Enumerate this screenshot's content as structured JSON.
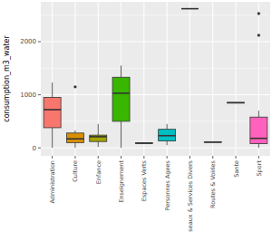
{
  "chart_data": {
    "type": "boxplot",
    "y_label": "consumption_m3_water",
    "categories": [
      "Administration",
      "Culture",
      "Enfance",
      "Enseignement",
      "Espaces Verts",
      "Personnes Agees",
      "Reseaux & Services Divers",
      "Routes & Voiries",
      "Sante",
      "Sport"
    ],
    "boxes": [
      {
        "min": 0,
        "q1": 380,
        "median": 720,
        "q3": 950,
        "max": 1230,
        "outliers": []
      },
      {
        "min": 0,
        "q1": 100,
        "median": 170,
        "q3": 280,
        "max": 330,
        "outliers": [
          1150
        ]
      },
      {
        "min": 20,
        "q1": 120,
        "median": 210,
        "q3": 240,
        "max": 450,
        "outliers": []
      },
      {
        "min": 0,
        "q1": 500,
        "median": 1030,
        "q3": 1330,
        "max": 1550,
        "outliers": []
      },
      {
        "min": 80,
        "q1": 85,
        "median": 90,
        "q3": 95,
        "max": 100,
        "outliers": []
      },
      {
        "min": 50,
        "q1": 130,
        "median": 230,
        "q3": 350,
        "max": 450,
        "outliers": []
      },
      {
        "min": 2620,
        "q1": 2620,
        "median": 2620,
        "q3": 2620,
        "max": 2620,
        "outliers": []
      },
      {
        "min": 100,
        "q1": 105,
        "median": 110,
        "q3": 115,
        "max": 120,
        "outliers": []
      },
      {
        "min": 840,
        "q1": 845,
        "median": 850,
        "q3": 855,
        "max": 860,
        "outliers": []
      },
      {
        "min": 0,
        "q1": 80,
        "median": 180,
        "q3": 580,
        "max": 700,
        "outliers": [
          2120,
          2530
        ]
      }
    ],
    "colors": [
      "#F8766D",
      "#D89000",
      "#A3A500",
      "#39B600",
      "#00BF7D",
      "#00BFC4",
      "#00B0F6",
      "#9590FF",
      "#E76BF3",
      "#FF62BC"
    ],
    "ylim": [
      -150,
      2750
    ],
    "yticks": [
      0,
      1000,
      2000
    ],
    "grid": true
  }
}
